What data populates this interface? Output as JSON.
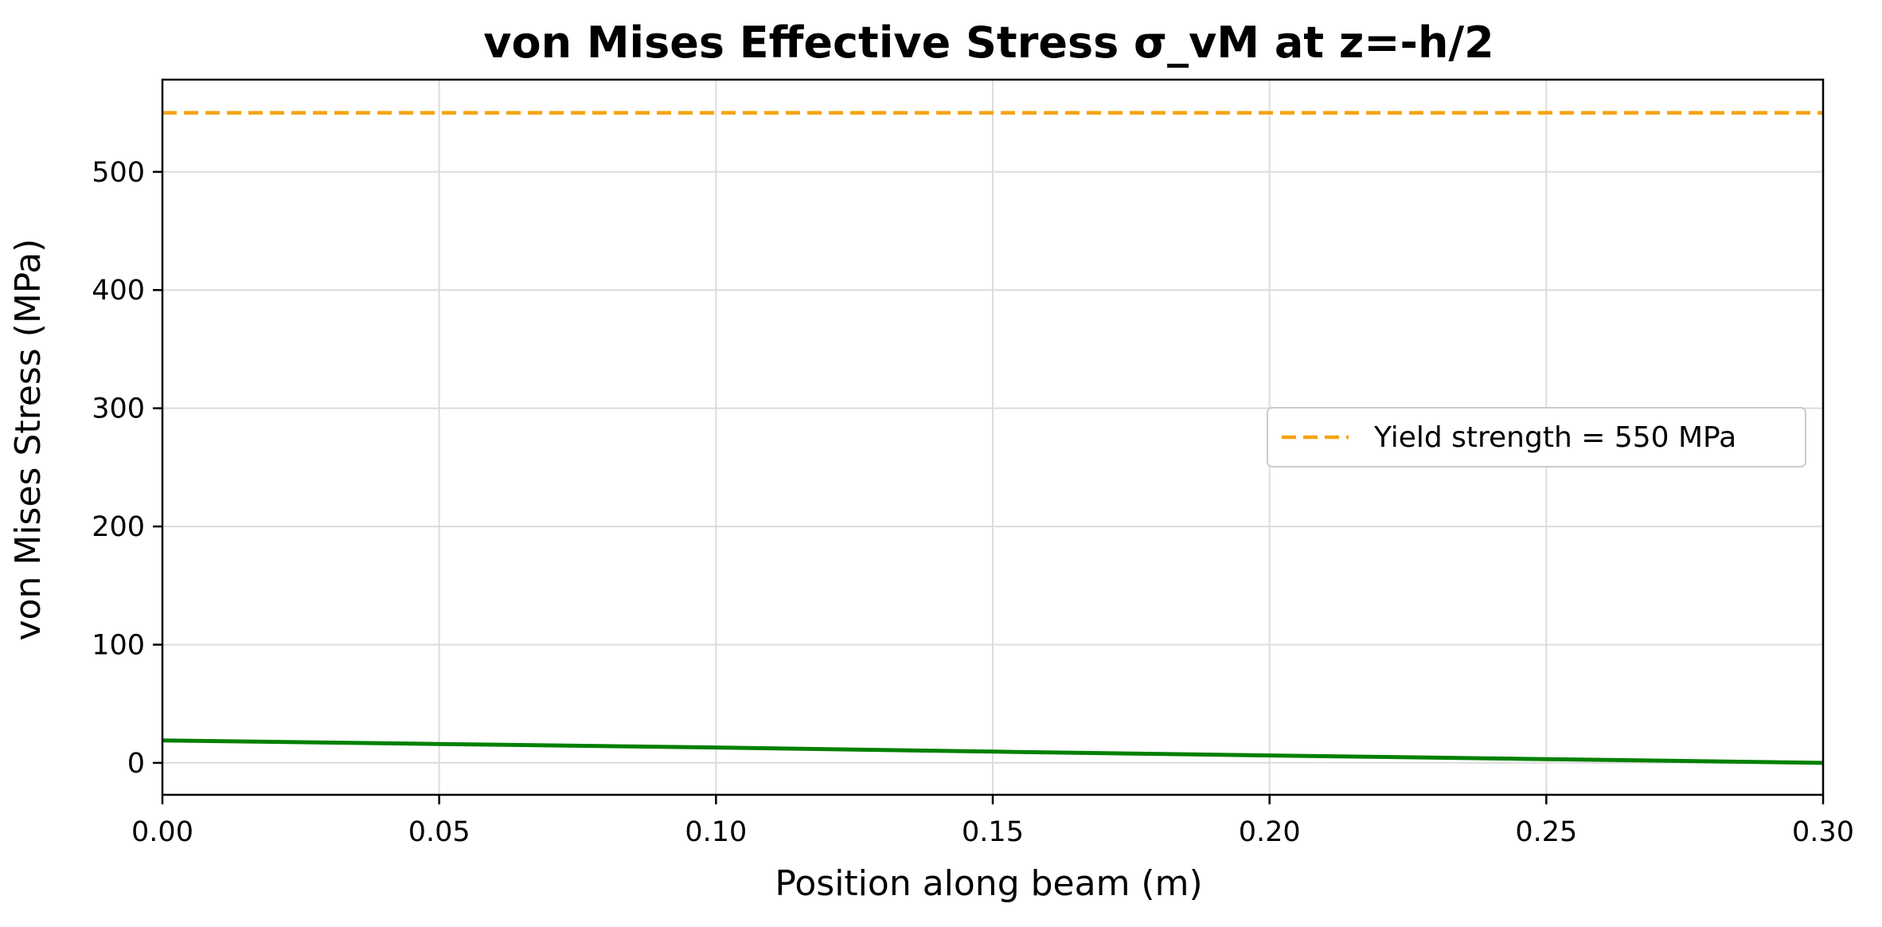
{
  "chart_data": {
    "type": "line",
    "title": "von Mises Effective Stress σ_vM at z=-h/2",
    "xlabel": "Position along beam (m)",
    "ylabel": "von Mises Stress (MPa)",
    "xlim": [
      0.0,
      0.3
    ],
    "ylim": [
      -27,
      578
    ],
    "x_ticks": [
      "0.00",
      "0.05",
      "0.10",
      "0.15",
      "0.20",
      "0.25",
      "0.30"
    ],
    "x_tick_values": [
      0.0,
      0.05,
      0.1,
      0.15,
      0.2,
      0.25,
      0.3
    ],
    "y_ticks": [
      "0",
      "100",
      "200",
      "300",
      "400",
      "500"
    ],
    "y_tick_values": [
      0,
      100,
      200,
      300,
      400,
      500
    ],
    "grid": true,
    "legend_placement": "center-right",
    "series": [
      {
        "color": "#008000",
        "style": "solid",
        "x": [
          0.0,
          0.05,
          0.1,
          0.15,
          0.2,
          0.25,
          0.3
        ],
        "values": [
          19,
          16,
          13,
          9.5,
          6.3,
          3.2,
          0
        ]
      },
      {
        "name": "Yield strength = 550 MPa",
        "color": "#f5a30f",
        "style": "dashed",
        "x": [
          0.0,
          0.3
        ],
        "values": [
          550,
          550
        ]
      }
    ]
  }
}
